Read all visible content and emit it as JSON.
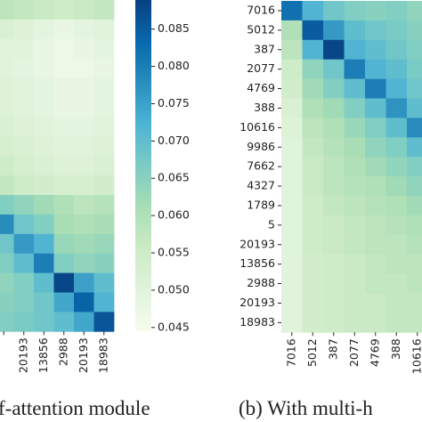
{
  "chart_data": [
    {
      "type": "heatmap",
      "caption": "f-attention module",
      "x_categories": [
        null,
        "20193",
        "13856",
        "2988",
        "20193",
        "18983"
      ],
      "zlim": [
        0.0445,
        0.0889
      ],
      "colormap": [
        "#f7fcf0",
        "#e0f3db",
        "#ccebc5",
        "#a8ddb5",
        "#7bccc4",
        "#4eb3d3",
        "#2b8cbe",
        "#0868ac",
        "#084081"
      ],
      "colorbar_ticks": [
        0.045,
        0.05,
        0.055,
        0.06,
        0.065,
        0.07,
        0.075,
        0.08,
        0.085
      ],
      "colorbar_tick_labels": [
        "0.045",
        "0.050",
        "0.055",
        "0.060",
        "0.065",
        "0.070",
        "0.075",
        "0.080",
        "0.085"
      ],
      "values": [
        [
          0.058,
          0.057,
          0.056,
          0.055,
          0.056,
          0.057
        ],
        [
          0.052,
          0.051,
          0.049,
          0.048,
          0.049,
          0.05
        ],
        [
          0.05,
          0.05,
          0.048,
          0.047,
          0.048,
          0.049
        ],
        [
          0.05,
          0.049,
          0.048,
          0.047,
          0.047,
          0.048
        ],
        [
          0.051,
          0.05,
          0.049,
          0.048,
          0.048,
          0.049
        ],
        [
          0.051,
          0.05,
          0.049,
          0.048,
          0.048,
          0.049
        ],
        [
          0.052,
          0.051,
          0.05,
          0.049,
          0.049,
          0.05
        ],
        [
          0.053,
          0.052,
          0.051,
          0.05,
          0.05,
          0.051
        ],
        [
          0.055,
          0.053,
          0.052,
          0.051,
          0.051,
          0.052
        ],
        [
          0.057,
          0.055,
          0.054,
          0.053,
          0.053,
          0.054
        ],
        [
          0.066,
          0.064,
          0.062,
          0.06,
          0.058,
          0.059
        ],
        [
          0.078,
          0.068,
          0.066,
          0.061,
          0.06,
          0.061
        ],
        [
          0.068,
          0.076,
          0.072,
          0.063,
          0.062,
          0.063
        ],
        [
          0.066,
          0.07,
          0.08,
          0.066,
          0.064,
          0.065
        ],
        [
          0.064,
          0.066,
          0.07,
          0.088,
          0.075,
          0.07
        ],
        [
          0.065,
          0.066,
          0.068,
          0.074,
          0.084,
          0.072
        ],
        [
          0.066,
          0.067,
          0.068,
          0.07,
          0.074,
          0.086
        ]
      ]
    },
    {
      "type": "heatmap",
      "caption": "(b)  With multi-h",
      "x_categories": [
        "7016",
        "5012",
        "387",
        "2077",
        "4769",
        "388",
        "10616"
      ],
      "y_categories": [
        "7016",
        "5012",
        "387",
        "2077",
        "4769",
        "388",
        "10616",
        "9986",
        "7662",
        "4327",
        "1789",
        "5",
        "20193",
        "13856",
        "2988",
        "20193",
        "18983"
      ],
      "zlim": [
        0.0445,
        0.0889
      ],
      "colormap": [
        "#f7fcf0",
        "#e0f3db",
        "#ccebc5",
        "#a8ddb5",
        "#7bccc4",
        "#4eb3d3",
        "#2b8cbe",
        "#0868ac",
        "#084081"
      ],
      "values": [
        [
          0.082,
          0.072,
          0.068,
          0.066,
          0.065,
          0.066,
          0.064
        ],
        [
          0.06,
          0.085,
          0.076,
          0.07,
          0.068,
          0.067,
          0.065
        ],
        [
          0.058,
          0.072,
          0.088,
          0.072,
          0.07,
          0.068,
          0.066
        ],
        [
          0.055,
          0.064,
          0.068,
          0.08,
          0.072,
          0.07,
          0.067
        ],
        [
          0.054,
          0.062,
          0.066,
          0.07,
          0.08,
          0.072,
          0.068
        ],
        [
          0.052,
          0.06,
          0.062,
          0.066,
          0.07,
          0.077,
          0.07
        ],
        [
          0.051,
          0.058,
          0.06,
          0.063,
          0.066,
          0.07,
          0.078
        ],
        [
          0.05,
          0.057,
          0.059,
          0.061,
          0.064,
          0.066,
          0.07
        ],
        [
          0.05,
          0.056,
          0.058,
          0.06,
          0.062,
          0.064,
          0.066
        ],
        [
          0.05,
          0.056,
          0.058,
          0.059,
          0.06,
          0.062,
          0.064
        ],
        [
          0.05,
          0.055,
          0.057,
          0.058,
          0.059,
          0.06,
          0.062
        ],
        [
          0.05,
          0.055,
          0.056,
          0.057,
          0.058,
          0.059,
          0.06
        ],
        [
          0.05,
          0.055,
          0.056,
          0.057,
          0.058,
          0.058,
          0.059
        ],
        [
          0.05,
          0.054,
          0.055,
          0.056,
          0.057,
          0.058,
          0.058
        ],
        [
          0.05,
          0.054,
          0.055,
          0.056,
          0.057,
          0.057,
          0.058
        ],
        [
          0.05,
          0.054,
          0.055,
          0.056,
          0.056,
          0.057,
          0.057
        ],
        [
          0.05,
          0.054,
          0.055,
          0.056,
          0.056,
          0.057,
          0.057
        ]
      ]
    }
  ]
}
